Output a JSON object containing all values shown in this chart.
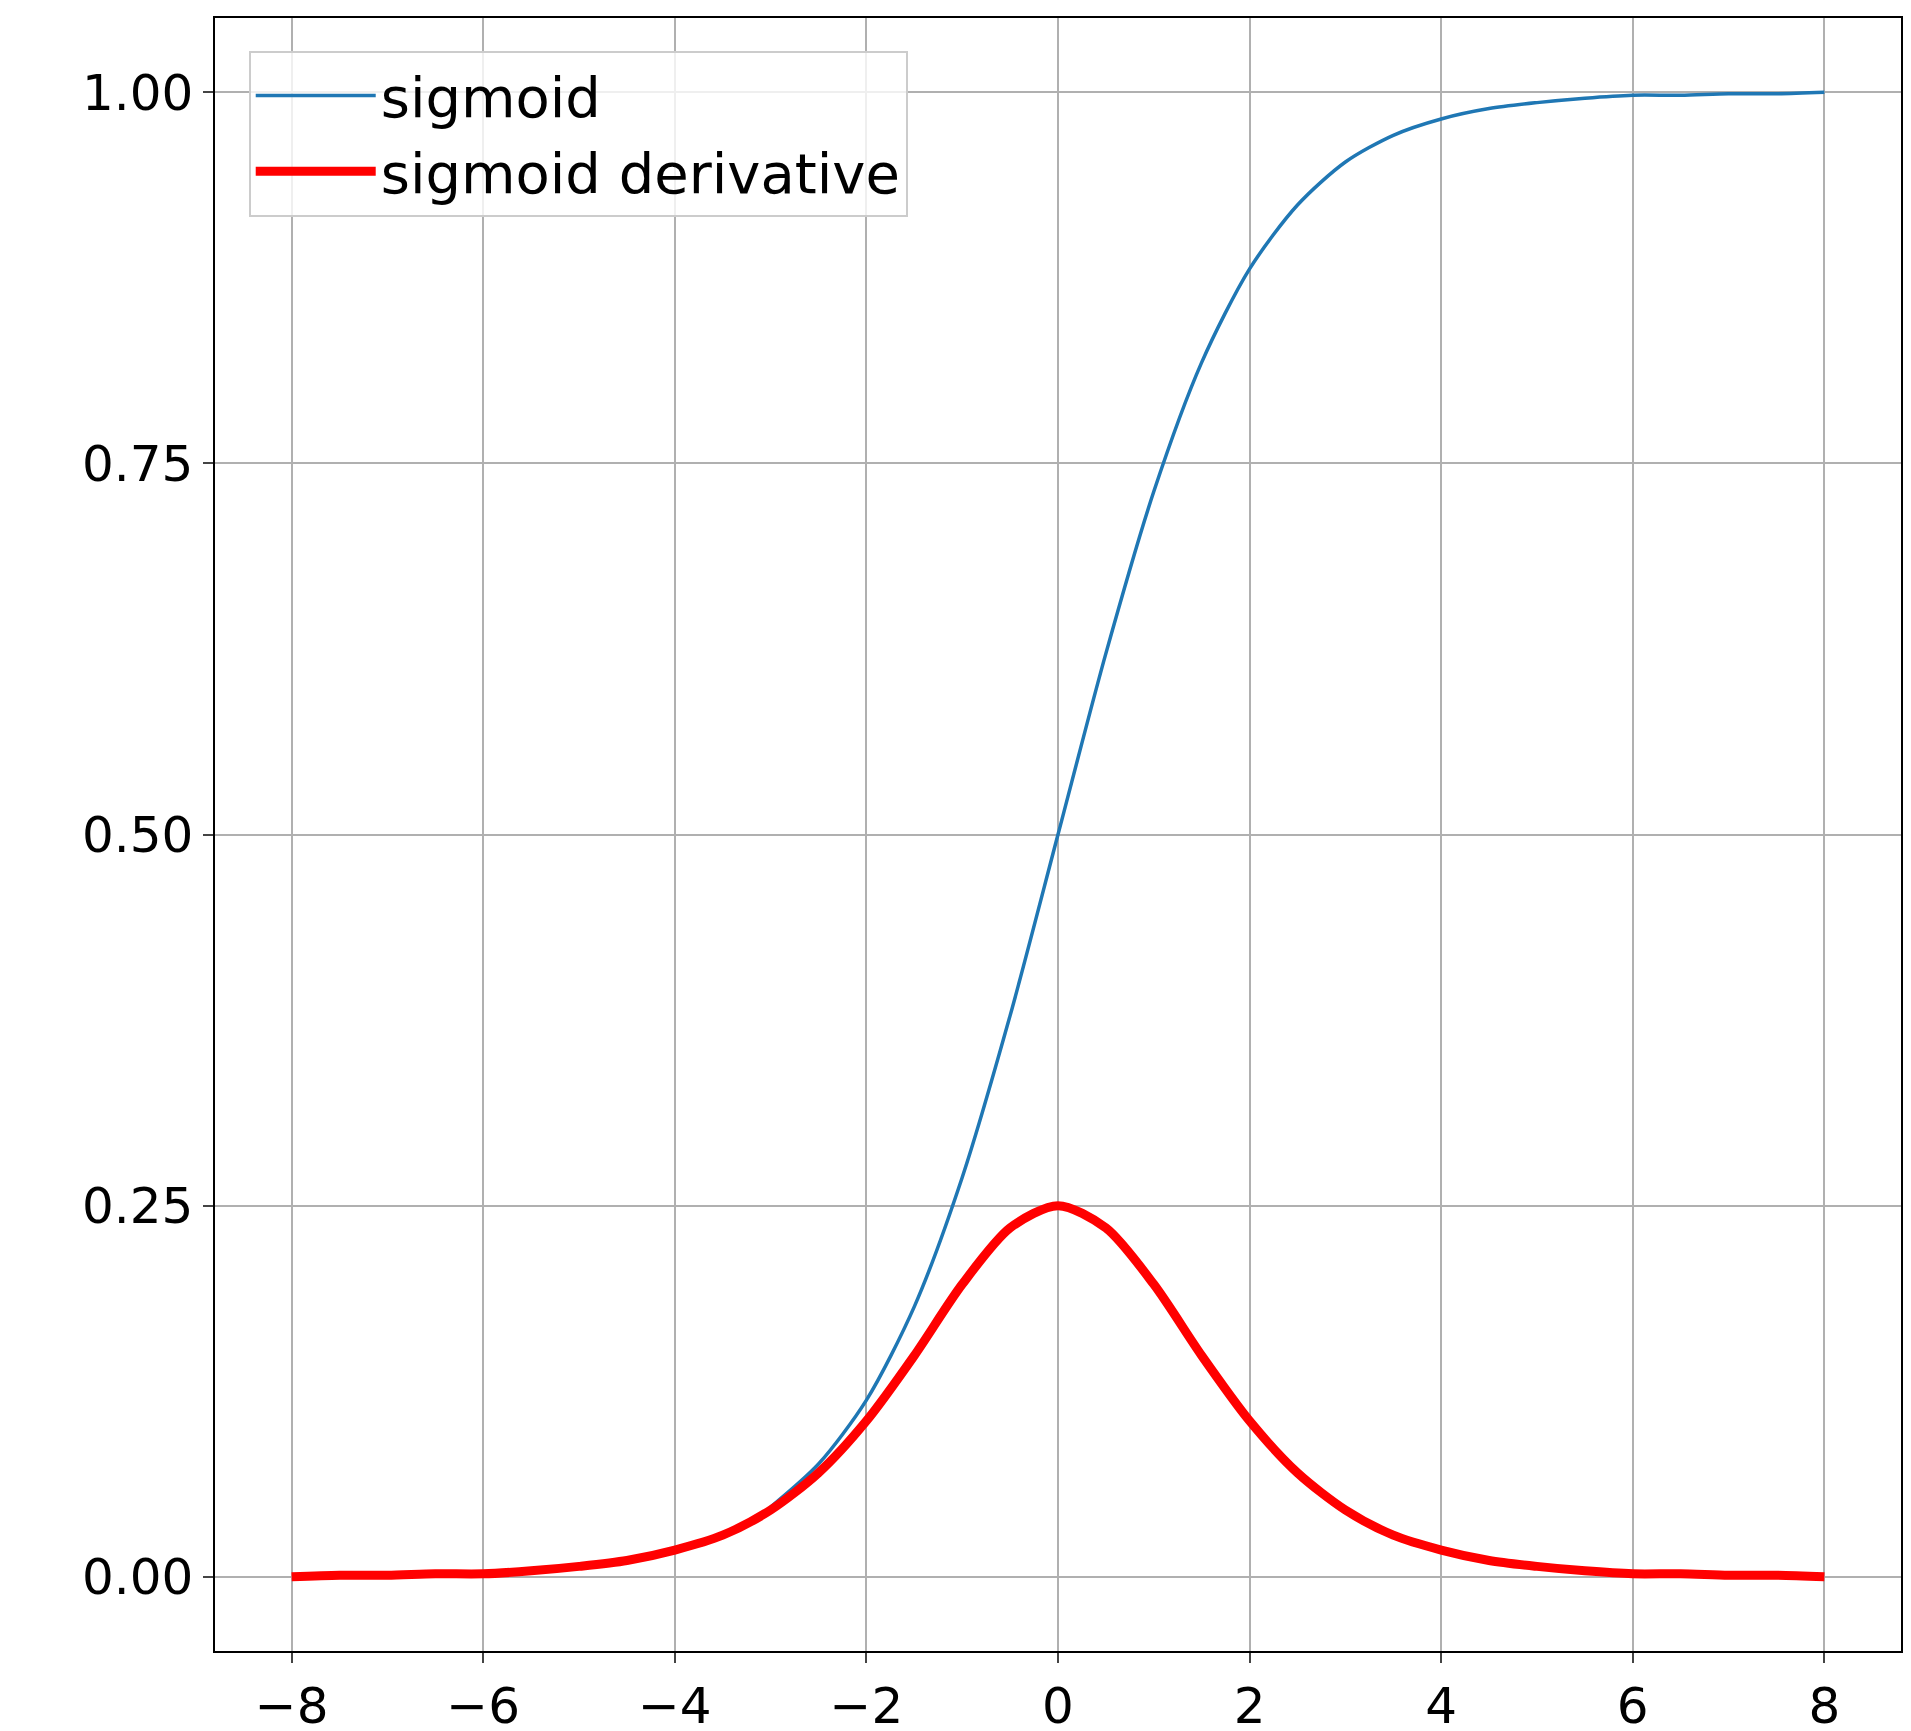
{
  "chart_data": {
    "type": "line",
    "x": [
      -8,
      -7.5,
      -7,
      -6.5,
      -6,
      -5.5,
      -5,
      -4.5,
      -4,
      -3.5,
      -3,
      -2.5,
      -2,
      -1.5,
      -1,
      -0.5,
      0,
      0.5,
      1,
      1.5,
      2,
      2.5,
      3,
      3.5,
      4,
      4.5,
      5,
      5.5,
      6,
      6.5,
      7,
      7.5,
      8
    ],
    "series": [
      {
        "name": "sigmoid",
        "color": "#1f77b4",
        "values": [
          null,
          null,
          null,
          null,
          null,
          null,
          null,
          null,
          null,
          null,
          0.047,
          0.076,
          0.119,
          0.182,
          0.269,
          0.378,
          0.5,
          0.622,
          0.731,
          0.818,
          0.881,
          0.924,
          0.953,
          0.971,
          0.982,
          0.989,
          0.993,
          0.996,
          0.998,
          0.998,
          0.999,
          0.999,
          1.0
        ]
      },
      {
        "name": "sigmoid derivative",
        "color": "#ff0000",
        "values": [
          0.0,
          0.001,
          0.001,
          0.002,
          0.002,
          0.004,
          0.007,
          0.011,
          0.018,
          0.028,
          0.045,
          0.07,
          0.105,
          0.149,
          0.197,
          0.235,
          0.25,
          0.235,
          0.197,
          0.149,
          0.105,
          0.07,
          0.045,
          0.028,
          0.018,
          0.011,
          0.007,
          0.004,
          0.002,
          0.002,
          0.001,
          0.001,
          0.0
        ]
      }
    ],
    "xlim": [
      -8.8,
      8.8
    ],
    "xticks": [
      {
        "value": -8,
        "label": "−8"
      },
      {
        "value": -6,
        "label": "−6"
      },
      {
        "value": -4,
        "label": "−4"
      },
      {
        "value": -2,
        "label": "−2"
      },
      0,
      2,
      4,
      6,
      8
    ],
    "ylim": [
      -0.05,
      1.05
    ],
    "yticks": [
      {
        "value": 0,
        "label": "0.00"
      },
      {
        "value": 0.25,
        "label": "0.25"
      },
      {
        "value": 0.5,
        "label": "0.50"
      },
      {
        "value": 0.75,
        "label": "0.75"
      },
      {
        "value": 1,
        "label": "1.00"
      }
    ],
    "grid": true,
    "legend": "top left",
    "marker": "none",
    "line_style": "solid"
  }
}
